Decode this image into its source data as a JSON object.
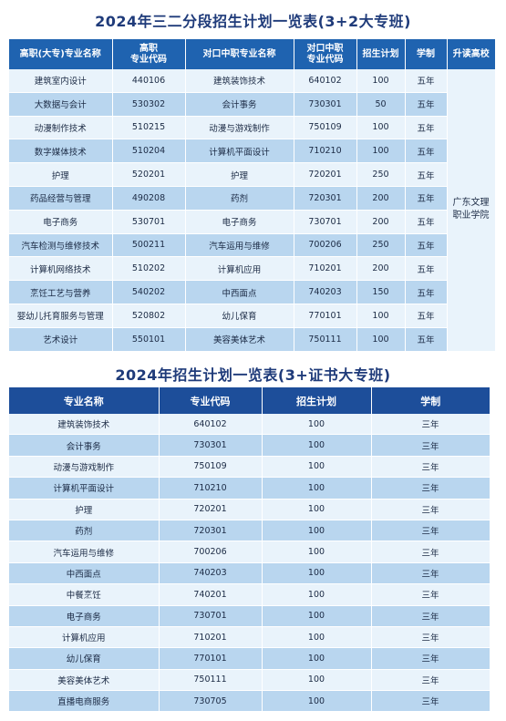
{
  "table1": {
    "title": "2024年三二分段招生计划一览表(3+2大专班)",
    "headers": {
      "h0": "高职(大专)专业名称",
      "h1_a": "高职",
      "h1_b": "专业代码",
      "h2": "对口中职专业名称",
      "h3_a": "对口中职",
      "h3_b": "专业代码",
      "h4": "招生计划",
      "h5": "学制",
      "h6": "升读高校"
    },
    "school_a": "广东文理",
    "school_b": "职业学院",
    "rows": [
      {
        "major": "建筑室内设计",
        "code": "440106",
        "sec_major": "建筑装饰技术",
        "sec_code": "640102",
        "plan": "100",
        "years": "五年"
      },
      {
        "major": "大数据与会计",
        "code": "530302",
        "sec_major": "会计事务",
        "sec_code": "730301",
        "plan": "50",
        "years": "五年"
      },
      {
        "major": "动漫制作技术",
        "code": "510215",
        "sec_major": "动漫与游戏制作",
        "sec_code": "750109",
        "plan": "100",
        "years": "五年"
      },
      {
        "major": "数字媒体技术",
        "code": "510204",
        "sec_major": "计算机平面设计",
        "sec_code": "710210",
        "plan": "100",
        "years": "五年"
      },
      {
        "major": "护理",
        "code": "520201",
        "sec_major": "护理",
        "sec_code": "720201",
        "plan": "250",
        "years": "五年"
      },
      {
        "major": "药品经营与管理",
        "code": "490208",
        "sec_major": "药剂",
        "sec_code": "720301",
        "plan": "200",
        "years": "五年"
      },
      {
        "major": "电子商务",
        "code": "530701",
        "sec_major": "电子商务",
        "sec_code": "730701",
        "plan": "200",
        "years": "五年"
      },
      {
        "major": "汽车检测与维修技术",
        "code": "500211",
        "sec_major": "汽车运用与维修",
        "sec_code": "700206",
        "plan": "250",
        "years": "五年"
      },
      {
        "major": "计算机网络技术",
        "code": "510202",
        "sec_major": "计算机应用",
        "sec_code": "710201",
        "plan": "200",
        "years": "五年"
      },
      {
        "major": "烹饪工艺与营养",
        "code": "540202",
        "sec_major": "中西面点",
        "sec_code": "740203",
        "plan": "150",
        "years": "五年"
      },
      {
        "major": "婴幼儿托育服务与管理",
        "code": "520802",
        "sec_major": "幼儿保育",
        "sec_code": "770101",
        "plan": "100",
        "years": "五年"
      },
      {
        "major": "艺术设计",
        "code": "550101",
        "sec_major": "美容美体艺术",
        "sec_code": "750111",
        "plan": "100",
        "years": "五年"
      }
    ]
  },
  "table2": {
    "title": "2024年招生计划一览表(3+证书大专班)",
    "headers": {
      "h0": "专业名称",
      "h1": "专业代码",
      "h2": "招生计划",
      "h3": "学制"
    },
    "rows": [
      {
        "major": "建筑装饰技术",
        "code": "640102",
        "plan": "100",
        "years": "三年"
      },
      {
        "major": "会计事务",
        "code": "730301",
        "plan": "100",
        "years": "三年"
      },
      {
        "major": "动漫与游戏制作",
        "code": "750109",
        "plan": "100",
        "years": "三年"
      },
      {
        "major": "计算机平面设计",
        "code": "710210",
        "plan": "100",
        "years": "三年"
      },
      {
        "major": "护理",
        "code": "720201",
        "plan": "100",
        "years": "三年"
      },
      {
        "major": "药剂",
        "code": "720301",
        "plan": "100",
        "years": "三年"
      },
      {
        "major": "汽车运用与维修",
        "code": "700206",
        "plan": "100",
        "years": "三年"
      },
      {
        "major": "中西面点",
        "code": "740203",
        "plan": "100",
        "years": "三年"
      },
      {
        "major": "中餐烹饪",
        "code": "740201",
        "plan": "100",
        "years": "三年"
      },
      {
        "major": "电子商务",
        "code": "730701",
        "plan": "100",
        "years": "三年"
      },
      {
        "major": "计算机应用",
        "code": "710201",
        "plan": "100",
        "years": "三年"
      },
      {
        "major": "幼儿保育",
        "code": "770101",
        "plan": "100",
        "years": "三年"
      },
      {
        "major": "美容美体艺术",
        "code": "750111",
        "plan": "100",
        "years": "三年"
      },
      {
        "major": "直播电商服务",
        "code": "730705",
        "plan": "100",
        "years": "三年"
      }
    ]
  }
}
